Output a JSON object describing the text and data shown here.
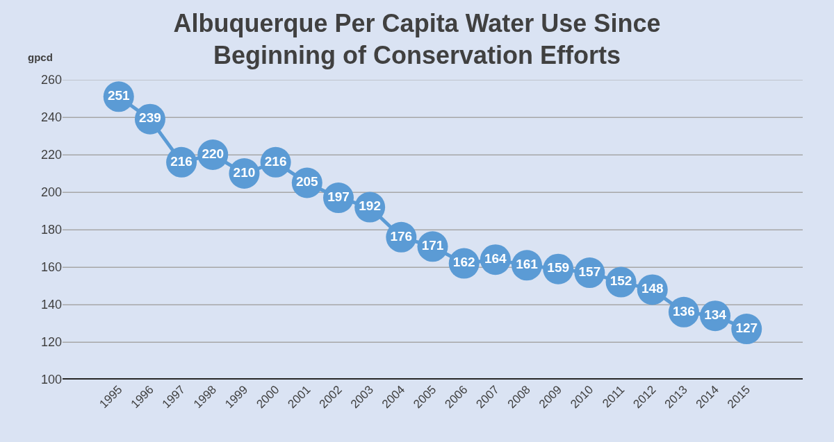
{
  "chart_data": {
    "type": "line",
    "title": "Albuquerque Per Capita Water Use Since\nBeginning of Conservation Efforts",
    "ylabel": "gpcd",
    "categories": [
      "1995",
      "1996",
      "1997",
      "1998",
      "1999",
      "2000",
      "2001",
      "2002",
      "2003",
      "2004",
      "2005",
      "2006",
      "2007",
      "2008",
      "2009",
      "2010",
      "2011",
      "2012",
      "2013",
      "2014",
      "2015"
    ],
    "series": [
      {
        "color": "#5b9bd5",
        "values": [
          251,
          239,
          216,
          220,
          210,
          216,
          205,
          197,
          192,
          176,
          171,
          162,
          164,
          161,
          159,
          157,
          152,
          148,
          136,
          134,
          127
        ]
      }
    ],
    "ylim": [
      100,
      260
    ],
    "yticks": [
      100,
      120,
      140,
      160,
      180,
      200,
      220,
      240,
      260
    ],
    "grid": "y",
    "marker": "circle",
    "line_style": "solid",
    "data_labels": true
  }
}
